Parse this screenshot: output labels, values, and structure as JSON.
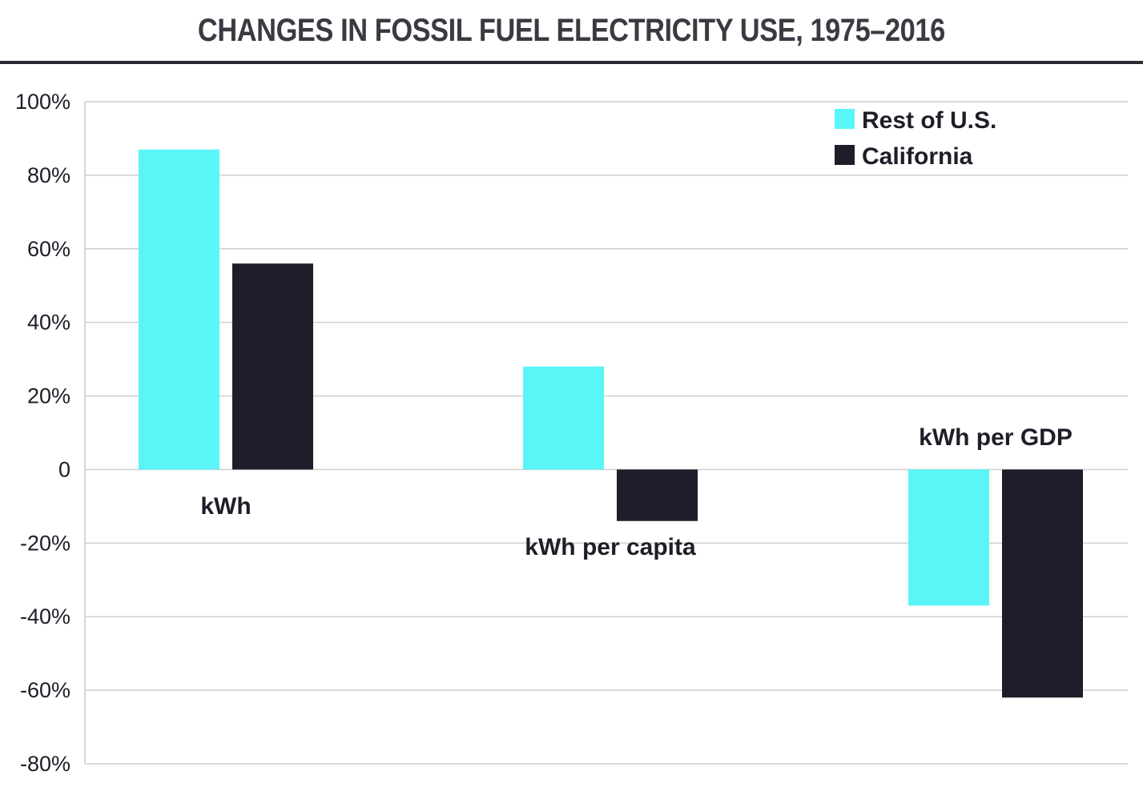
{
  "chart_data": {
    "type": "bar",
    "title": "CHANGES IN FOSSIL FUEL ELECTRICITY USE, 1975–2016",
    "categories": [
      "kWh",
      "kWh per capita",
      "kWh per GDP"
    ],
    "series": [
      {
        "name": "Rest of U.S.",
        "color": "#5af5f6",
        "values": [
          87,
          28,
          -37
        ]
      },
      {
        "name": "California",
        "color": "#1f1d29",
        "values": [
          56,
          -14,
          -62
        ]
      }
    ],
    "ylim": [
      -80,
      100
    ],
    "yticks": [
      100,
      80,
      60,
      40,
      20,
      0,
      -20,
      -40,
      -60,
      -80
    ],
    "ytick_labels": [
      "100%",
      "80%",
      "60%",
      "40%",
      "20%",
      "0",
      "-20%",
      "-40%",
      "-60%",
      "-80%"
    ],
    "grid": true,
    "legend_position": "top-right",
    "xlabel": "",
    "ylabel": ""
  }
}
